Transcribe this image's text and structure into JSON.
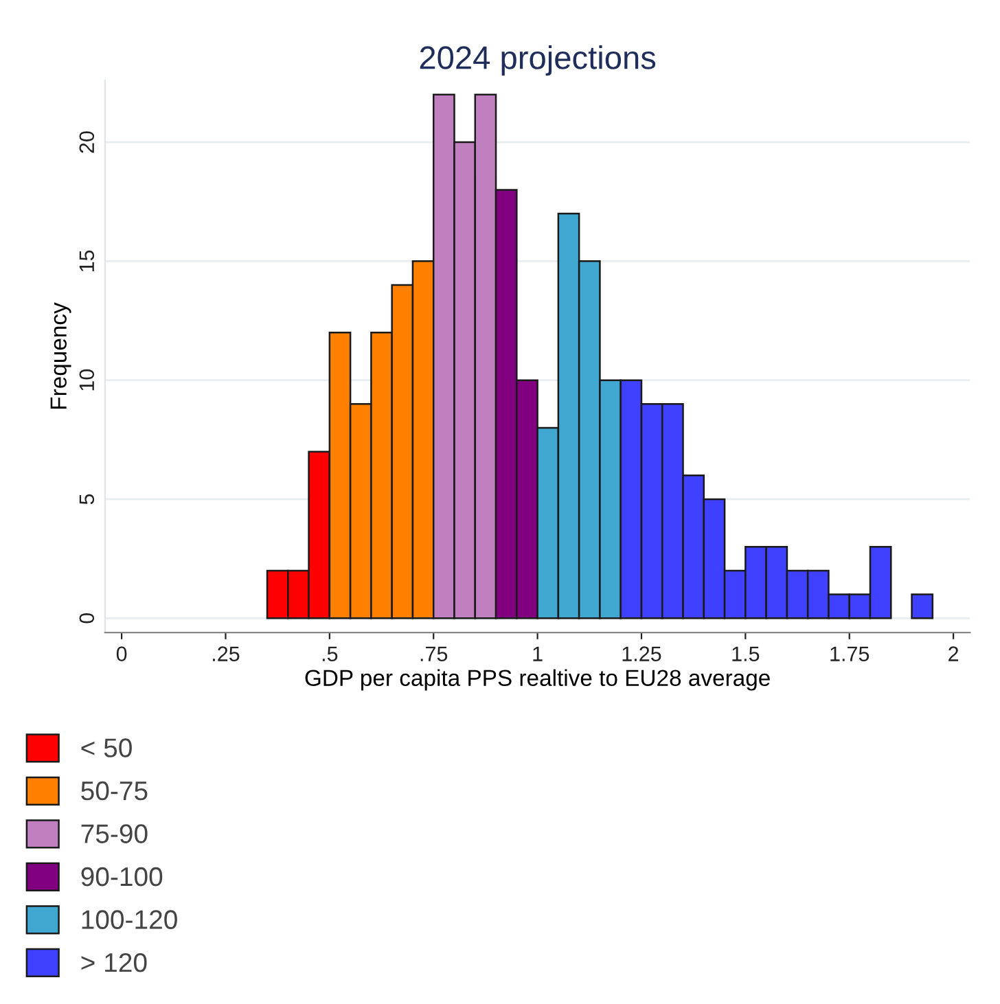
{
  "chart_data": {
    "type": "histogram",
    "title": "2024 projections",
    "xlabel": "GDP per capita PPS realtive to EU28 average",
    "ylabel": "Frequency",
    "bins": [
      0.35,
      0.4,
      0.45,
      0.5,
      0.55,
      0.6,
      0.65,
      0.7,
      0.75,
      0.8,
      0.85,
      0.9,
      0.95,
      1.0,
      1.05,
      1.1,
      1.15,
      1.2,
      1.25,
      1.3,
      1.35,
      1.4,
      1.45,
      1.5,
      1.55,
      1.6,
      1.65,
      1.7,
      1.75,
      1.8,
      1.85,
      1.9,
      1.95
    ],
    "series": [
      {
        "name": "< 50",
        "color": "#ff0000",
        "values": [
          2,
          2,
          7,
          null,
          null,
          null,
          null,
          null,
          null,
          null,
          null,
          null,
          null,
          null,
          null,
          null,
          null,
          null,
          null,
          null,
          null,
          null,
          null,
          null,
          null,
          null,
          null,
          null,
          null,
          null,
          null,
          null
        ]
      },
      {
        "name": "50-75",
        "color": "#ff8000",
        "values": [
          null,
          null,
          null,
          12,
          9,
          12,
          14,
          15,
          null,
          null,
          null,
          null,
          null,
          null,
          null,
          null,
          null,
          null,
          null,
          null,
          null,
          null,
          null,
          null,
          null,
          null,
          null,
          null,
          null,
          null,
          null,
          null
        ]
      },
      {
        "name": "75-90",
        "color": "#c080c0",
        "values": [
          null,
          null,
          null,
          null,
          null,
          null,
          null,
          null,
          22,
          20,
          22,
          null,
          null,
          null,
          null,
          null,
          null,
          null,
          null,
          null,
          null,
          null,
          null,
          null,
          null,
          null,
          null,
          null,
          null,
          null,
          null,
          null
        ]
      },
      {
        "name": "90-100",
        "color": "#800080",
        "values": [
          null,
          null,
          null,
          null,
          null,
          null,
          null,
          null,
          null,
          null,
          null,
          18,
          10,
          null,
          null,
          null,
          null,
          null,
          null,
          null,
          null,
          null,
          null,
          null,
          null,
          null,
          null,
          null,
          null,
          null,
          null,
          null
        ]
      },
      {
        "name": "100-120",
        "color": "#40a8d0",
        "values": [
          null,
          null,
          null,
          null,
          null,
          null,
          null,
          null,
          null,
          null,
          null,
          null,
          null,
          8,
          17,
          15,
          10,
          null,
          null,
          null,
          null,
          null,
          null,
          null,
          null,
          null,
          null,
          null,
          null,
          null,
          null,
          null
        ]
      },
      {
        "name": "> 120",
        "color": "#4040ff",
        "values": [
          null,
          null,
          null,
          null,
          null,
          null,
          null,
          null,
          null,
          null,
          null,
          null,
          null,
          null,
          null,
          null,
          null,
          10,
          9,
          9,
          6,
          5,
          2,
          3,
          3,
          2,
          2,
          1,
          1,
          3,
          0,
          1
        ]
      }
    ],
    "xlim": [
      -0.04,
      2.04
    ],
    "ylim": [
      -0.6,
      22.6
    ],
    "xticks": [
      0,
      {
        "value": 0.25,
        "label": ".25"
      },
      {
        "value": 0.5,
        "label": ".5"
      },
      {
        "value": 0.75,
        "label": ".75"
      },
      1,
      {
        "value": 1.25,
        "label": "1.25"
      },
      {
        "value": 1.5,
        "label": "1.5"
      },
      {
        "value": 1.75,
        "label": "1.75"
      },
      2
    ],
    "yticks": [
      0,
      5,
      10,
      15,
      20
    ],
    "grid": "y",
    "legend": "bottom left"
  }
}
